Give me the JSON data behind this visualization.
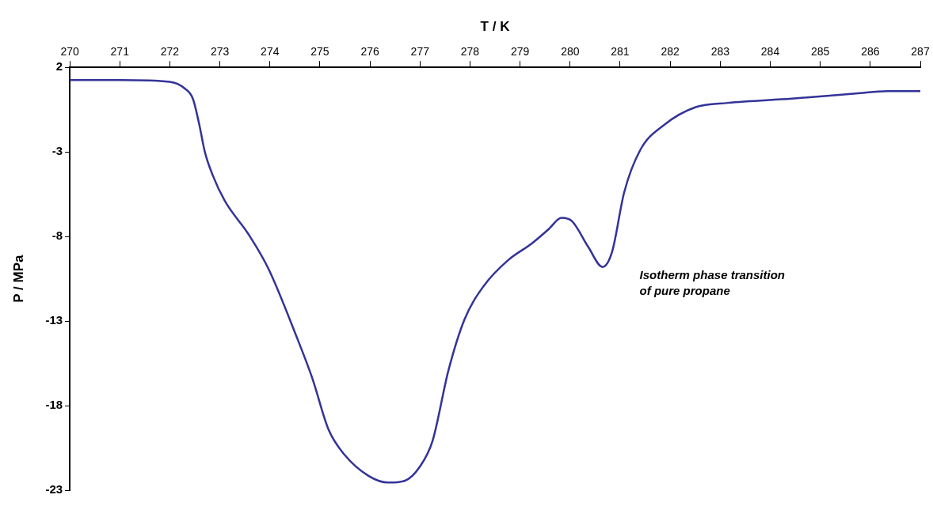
{
  "chart_data": {
    "type": "line",
    "xlabel": "T / K",
    "ylabel": "P / MPa",
    "annotations": [
      "Isotherm phase transition\nof pure propane"
    ],
    "xlim": [
      270,
      287
    ],
    "xticks": [
      270,
      271,
      272,
      273,
      274,
      275,
      276,
      277,
      278,
      279,
      280,
      281,
      282,
      283,
      284,
      285,
      286,
      287
    ],
    "ylim": [
      -23,
      2
    ],
    "yticks": [
      2,
      -3,
      -8,
      -13,
      -18,
      -23
    ],
    "grid": false,
    "legend": false,
    "marker": "none",
    "line_style": "solid",
    "series": [
      {
        "color": "#333399",
        "x": [
          270,
          271,
          272,
          272.3,
          272.46,
          272.59,
          272.7,
          272.86,
          273.1,
          273.58,
          273.97,
          274.53,
          274.85,
          275.17,
          275.49,
          275.97,
          276.37,
          276.69,
          277,
          277.25,
          277.57,
          277.89,
          278.28,
          278.76,
          279.24,
          279.56,
          279.83,
          280.04,
          280.36,
          280.65,
          280.84,
          281.08,
          281.4,
          281.88,
          282.51,
          283.15,
          284.43,
          285.71,
          286.35,
          287
        ],
        "values": [
          1.25,
          1.25,
          1.15,
          0.75,
          0.15,
          -1.4,
          -3,
          -4.4,
          -5.9,
          -7.9,
          -9.9,
          -13.9,
          -16.4,
          -19.4,
          -20.9,
          -22.15,
          -22.55,
          -22.45,
          -21.6,
          -20.1,
          -15.9,
          -12.9,
          -10.9,
          -9.4,
          -8.4,
          -7.6,
          -6.9,
          -7.1,
          -8.6,
          -9.8,
          -8.9,
          -5.4,
          -2.9,
          -1.4,
          -0.35,
          -0.1,
          0.15,
          0.45,
          0.6,
          0.6
        ]
      }
    ]
  }
}
